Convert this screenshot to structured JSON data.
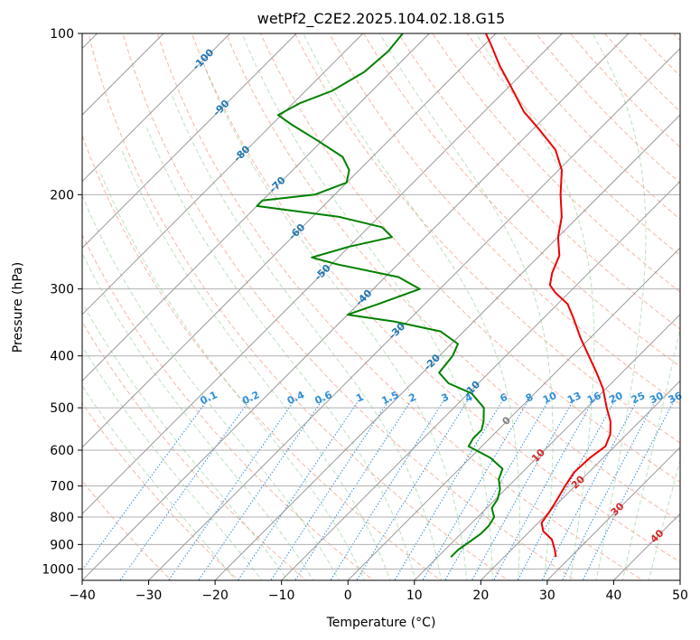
{
  "chart_data": {
    "type": "line",
    "chart_kind": "skew-T log-P diagram",
    "title": "wetPf2_C2E2.2025.104.02.18.G15",
    "xlabel": "Temperature (°C)",
    "ylabel": "Pressure (hPa)",
    "xlim": [
      -40,
      50
    ],
    "ylim": [
      1050,
      100
    ],
    "y_scale": "log",
    "x_ticks": [
      -40,
      -30,
      -20,
      -10,
      0,
      10,
      20,
      30,
      40,
      50
    ],
    "x_tick_labels": [
      "−40",
      "−30",
      "−20",
      "−10",
      "0",
      "10",
      "20",
      "30",
      "40",
      "50"
    ],
    "y_ticks": [
      100,
      200,
      300,
      400,
      500,
      600,
      700,
      800,
      900,
      1000
    ],
    "y_tick_labels": [
      "100",
      "200",
      "300",
      "400",
      "500",
      "600",
      "700",
      "800",
      "900",
      "1000"
    ],
    "grid": true,
    "isotherm_labels": [
      {
        "temp": -100,
        "p": 112,
        "text": "-100"
      },
      {
        "temp": -90,
        "p": 138,
        "text": "-90"
      },
      {
        "temp": -80,
        "p": 168,
        "text": "-80"
      },
      {
        "temp": -70,
        "p": 192,
        "text": "-70"
      },
      {
        "temp": -60,
        "p": 235,
        "text": "-60"
      },
      {
        "temp": -50,
        "p": 280,
        "text": "-50"
      },
      {
        "temp": -40,
        "p": 312,
        "text": "-40"
      },
      {
        "temp": -30,
        "p": 360,
        "text": "-30"
      },
      {
        "temp": -20,
        "p": 412,
        "text": "-20"
      },
      {
        "temp": -10,
        "p": 462,
        "text": "-10"
      },
      {
        "temp": 0,
        "p": 530,
        "text": "0"
      },
      {
        "temp": 10,
        "p": 615,
        "text": "10"
      },
      {
        "temp": 20,
        "p": 690,
        "text": "20"
      },
      {
        "temp": 30,
        "p": 775,
        "text": "30"
      },
      {
        "temp": 40,
        "p": 870,
        "text": "40"
      }
    ],
    "mixing_ratio_labels": [
      {
        "w": 0.1,
        "text": "0.1"
      },
      {
        "w": 0.2,
        "text": "0.2"
      },
      {
        "w": 0.4,
        "text": "0.4"
      },
      {
        "w": 0.6,
        "text": "0.6"
      },
      {
        "w": 1,
        "text": "1"
      },
      {
        "w": 1.5,
        "text": "1.5"
      },
      {
        "w": 2,
        "text": "2"
      },
      {
        "w": 3,
        "text": "3"
      },
      {
        "w": 4,
        "text": "4"
      },
      {
        "w": 6,
        "text": "6"
      },
      {
        "w": 8,
        "text": "8"
      },
      {
        "w": 10,
        "text": "10"
      },
      {
        "w": 13,
        "text": "13"
      },
      {
        "w": 16,
        "text": "16"
      },
      {
        "w": 20,
        "text": "20"
      },
      {
        "w": 25,
        "text": "25"
      },
      {
        "w": 30,
        "text": "30"
      },
      {
        "w": 36,
        "text": "36"
      }
    ],
    "mixing_ratio_label_pressure": 480,
    "series": [
      {
        "role": "temperature",
        "color": "#ee0000",
        "points": [
          [
            950,
            27.8
          ],
          [
            920,
            26.5
          ],
          [
            880,
            24.5
          ],
          [
            850,
            22.0
          ],
          [
            820,
            20.5
          ],
          [
            780,
            20.0
          ],
          [
            740,
            19.3
          ],
          [
            700,
            18.5
          ],
          [
            660,
            17.8
          ],
          [
            620,
            18.0
          ],
          [
            590,
            18.6
          ],
          [
            560,
            17.5
          ],
          [
            530,
            15.6
          ],
          [
            500,
            13.0
          ],
          [
            460,
            9.5
          ],
          [
            430,
            6.2
          ],
          [
            400,
            2.5
          ],
          [
            370,
            -1.5
          ],
          [
            340,
            -5.5
          ],
          [
            320,
            -8.5
          ],
          [
            305,
            -12.0
          ],
          [
            295,
            -14.0
          ],
          [
            280,
            -15.5
          ],
          [
            260,
            -17.0
          ],
          [
            240,
            -20.0
          ],
          [
            220,
            -22.5
          ],
          [
            200,
            -26.0
          ],
          [
            180,
            -29.5
          ],
          [
            165,
            -33.5
          ],
          [
            150,
            -39.5
          ],
          [
            140,
            -44.0
          ],
          [
            125,
            -50.0
          ],
          [
            115,
            -54.5
          ],
          [
            105,
            -59.0
          ],
          [
            100,
            -61.5
          ]
        ]
      },
      {
        "role": "dewpoint",
        "color": "#008000",
        "points": [
          [
            950,
            12.0
          ],
          [
            920,
            12.0
          ],
          [
            890,
            12.5
          ],
          [
            860,
            13.0
          ],
          [
            830,
            13.0
          ],
          [
            800,
            12.5
          ],
          [
            770,
            10.8
          ],
          [
            740,
            10.3
          ],
          [
            710,
            9.2
          ],
          [
            680,
            7.5
          ],
          [
            650,
            6.5
          ],
          [
            620,
            3.0
          ],
          [
            590,
            -2.0
          ],
          [
            570,
            -2.5
          ],
          [
            550,
            -2.5
          ],
          [
            530,
            -3.5
          ],
          [
            500,
            -5.5
          ],
          [
            470,
            -9.5
          ],
          [
            450,
            -14.5
          ],
          [
            430,
            -17.5
          ],
          [
            400,
            -18.0
          ],
          [
            380,
            -19.0
          ],
          [
            360,
            -23.5
          ],
          [
            345,
            -32.0
          ],
          [
            335,
            -40.0
          ],
          [
            320,
            -37.0
          ],
          [
            300,
            -33.0
          ],
          [
            285,
            -38.0
          ],
          [
            270,
            -49.0
          ],
          [
            262,
            -54.0
          ],
          [
            250,
            -50.0
          ],
          [
            240,
            -45.0
          ],
          [
            230,
            -48.0
          ],
          [
            220,
            -56.0
          ],
          [
            210,
            -70.0
          ],
          [
            205,
            -70.0
          ],
          [
            200,
            -63.0
          ],
          [
            190,
            -60.0
          ],
          [
            180,
            -61.5
          ],
          [
            170,
            -64.5
          ],
          [
            158,
            -71.0
          ],
          [
            148,
            -77.0
          ],
          [
            142,
            -80.5
          ],
          [
            135,
            -79.0
          ],
          [
            128,
            -76.0
          ],
          [
            118,
            -74.0
          ],
          [
            108,
            -73.5
          ],
          [
            100,
            -74.0
          ]
        ]
      }
    ]
  }
}
